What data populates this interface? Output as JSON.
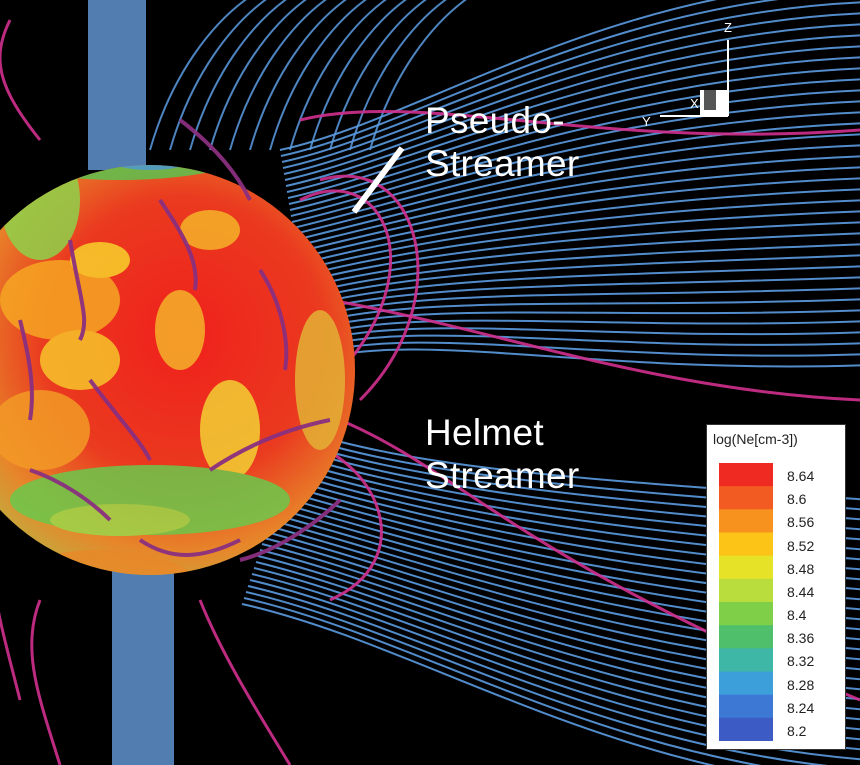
{
  "labels": {
    "pseudo_line1": "Pseudo-",
    "pseudo_line2": "Streamer",
    "helmet_line1": "Helmet",
    "helmet_line2": "Streamer"
  },
  "axes": {
    "z": "Z",
    "x": "X",
    "y": "Y"
  },
  "legend": {
    "title": "log(Ne[cm-3])",
    "ticks": [
      "8.64",
      "8.6",
      "8.56",
      "8.52",
      "8.48",
      "8.44",
      "8.4",
      "8.36",
      "8.32",
      "8.28",
      "8.24",
      "8.2"
    ],
    "colors": [
      "#ee2a22",
      "#f25c23",
      "#f7921e",
      "#fbc416",
      "#e6e227",
      "#b8dd3c",
      "#7fcf49",
      "#4fbf6b",
      "#3fb7a6",
      "#3c9fd9",
      "#3c78d4",
      "#3d5bc4"
    ]
  },
  "colors": {
    "background": "#000000",
    "open_field_lines": "#5b9be0",
    "closed_field_lines": "#d1308f",
    "sun_core": "#e8321f"
  }
}
